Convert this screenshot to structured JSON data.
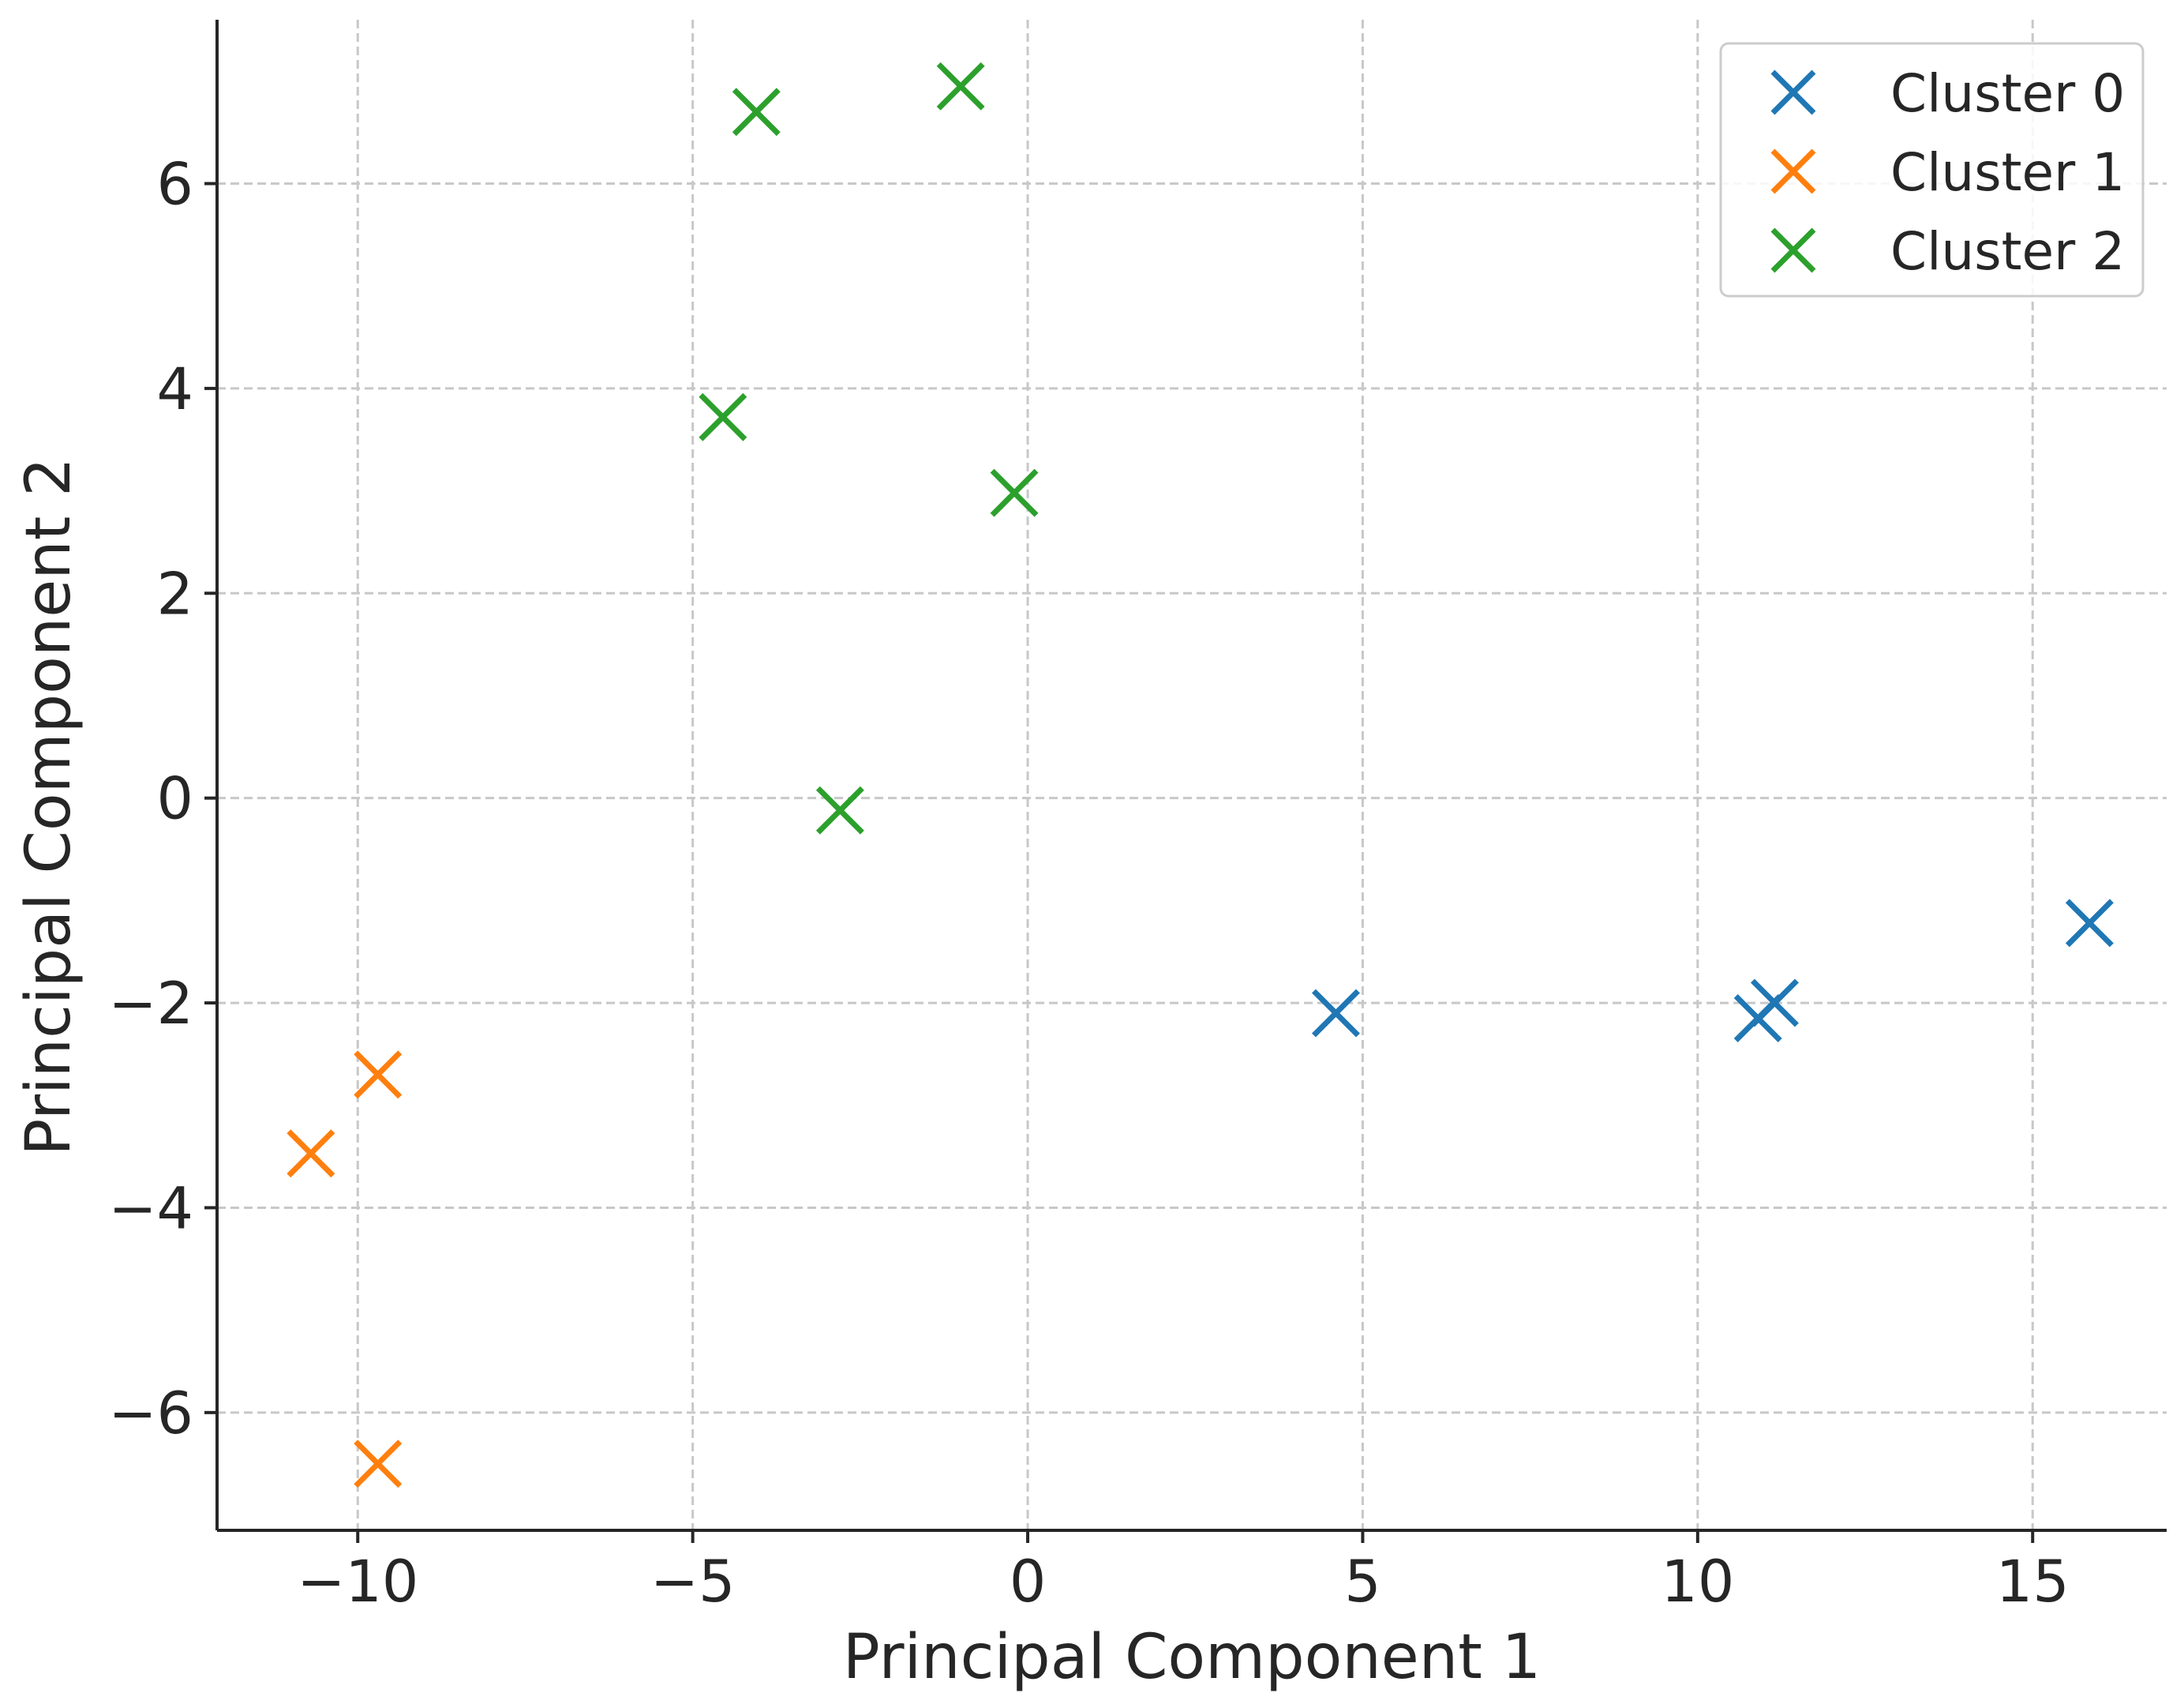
{
  "chart_data": {
    "type": "scatter",
    "title": "",
    "xlabel": "Principal Component 1",
    "ylabel": "Principal Component 2",
    "xlim": [
      -12.1,
      17.0
    ],
    "ylim": [
      -7.15,
      7.6
    ],
    "xticks": [
      -10,
      -5,
      0,
      5,
      10,
      15
    ],
    "yticks": [
      -6,
      -4,
      -2,
      0,
      2,
      4,
      6
    ],
    "xtick_labels": [
      "−10",
      "−5",
      "0",
      "5",
      "10",
      "15"
    ],
    "ytick_labels": [
      "−6",
      "−4",
      "−2",
      "0",
      "2",
      "4",
      "6"
    ],
    "grid": true,
    "marker": "x",
    "legend_position": "top-right",
    "series": [
      {
        "name": "Cluster 0",
        "color": "#1f77b4",
        "points": [
          {
            "x": 4.6,
            "y": -2.1
          },
          {
            "x": 10.9,
            "y": -2.15
          },
          {
            "x": 11.15,
            "y": -2.0
          },
          {
            "x": 15.85,
            "y": -1.22
          }
        ]
      },
      {
        "name": "Cluster 1",
        "color": "#ff7f0e",
        "points": [
          {
            "x": -9.7,
            "y": -2.7
          },
          {
            "x": -10.7,
            "y": -3.47
          },
          {
            "x": -9.7,
            "y": -6.5
          }
        ]
      },
      {
        "name": "Cluster 2",
        "color": "#2ca02c",
        "points": [
          {
            "x": -4.05,
            "y": 6.7
          },
          {
            "x": -1.0,
            "y": 6.95
          },
          {
            "x": -4.55,
            "y": 3.72
          },
          {
            "x": -0.2,
            "y": 2.98
          },
          {
            "x": -2.8,
            "y": -0.12
          }
        ]
      }
    ]
  }
}
